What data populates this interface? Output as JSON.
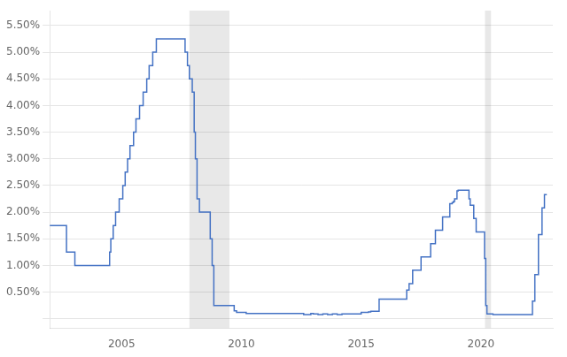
{
  "chart_data": {
    "type": "line",
    "line_style": "steps",
    "color": "#4472c4",
    "x": [
      2002.0,
      2002.05,
      2002.08,
      2002.1,
      2002.15,
      2002.2,
      2002.25,
      2002.3,
      2002.35,
      2002.4,
      2002.45,
      2002.5,
      2002.55,
      2002.6,
      2002.65,
      2002.7,
      2002.75,
      2002.8,
      2002.85,
      2002.9,
      2002.95,
      2003.0,
      2003.05,
      2003.1,
      2003.15,
      2003.2,
      2003.25,
      2003.3,
      2003.4,
      2003.5,
      2003.6,
      2003.7,
      2003.8,
      2003.9,
      2004.0,
      2004.1,
      2004.2,
      2004.3,
      2004.4,
      2004.5,
      2004.55,
      2004.6,
      2004.65,
      2004.7,
      2004.75,
      2004.8,
      2004.85,
      2004.9,
      2004.95,
      2005.0,
      2005.05,
      2005.1,
      2005.15,
      2005.2,
      2005.25,
      2005.3,
      2005.35,
      2005.4,
      2005.45,
      2005.5,
      2005.55,
      2005.6,
      2005.65,
      2005.7,
      2005.75,
      2005.8,
      2005.85,
      2005.9,
      2005.95,
      2006.0,
      2006.05,
      2006.1,
      2006.15,
      2006.2,
      2006.25,
      2006.3,
      2006.35,
      2006.4,
      2006.45,
      2006.5,
      2006.55,
      2006.6,
      2006.65,
      2006.7,
      2006.75,
      2006.8,
      2006.85,
      2006.9,
      2006.95,
      2007.0,
      2007.05,
      2007.1,
      2007.15,
      2007.2,
      2007.25,
      2007.3,
      2007.35,
      2007.4,
      2007.45,
      2007.5,
      2007.55,
      2007.6,
      2007.65,
      2007.7,
      2007.75,
      2007.78,
      2007.83,
      2007.87,
      2007.9,
      2007.95,
      2008.0,
      2008.03,
      2008.05,
      2008.08,
      2008.1,
      2008.15,
      2008.2,
      2008.25,
      2008.3,
      2008.35,
      2008.4,
      2008.45,
      2008.5,
      2008.55,
      2008.6,
      2008.65,
      2008.7,
      2008.75,
      2008.78,
      2008.82,
      2008.85,
      2008.9,
      2008.92,
      2008.95,
      2009.0,
      2009.1,
      2009.2,
      2009.3,
      2009.4,
      2009.5,
      2009.6,
      2009.7,
      2009.75,
      2009.8,
      2009.85,
      2009.9,
      2009.95,
      2010.0,
      2010.1,
      2010.15,
      2010.2,
      2010.25,
      2010.3,
      2010.4,
      2010.5,
      2010.6,
      2010.7,
      2010.8,
      2010.9,
      2011.0,
      2011.1,
      2011.2,
      2011.3,
      2011.4,
      2011.5,
      2011.6,
      2011.7,
      2011.8,
      2011.9,
      2012.0,
      2012.1,
      2012.2,
      2012.3,
      2012.4,
      2012.5,
      2012.6,
      2012.7,
      2012.8,
      2012.9,
      2013.0,
      2013.1,
      2013.2,
      2013.3,
      2013.4,
      2013.5,
      2013.6,
      2013.7,
      2013.8,
      2013.9,
      2014.0,
      2014.1,
      2014.2,
      2014.3,
      2014.4,
      2014.5,
      2014.6,
      2014.7,
      2014.8,
      2014.9,
      2015.0,
      2015.1,
      2015.2,
      2015.3,
      2015.4,
      2015.5,
      2015.6,
      2015.7,
      2015.75,
      2015.8,
      2015.85,
      2015.9,
      2015.95,
      2016.0,
      2016.1,
      2016.2,
      2016.3,
      2016.4,
      2016.5,
      2016.6,
      2016.7,
      2016.8,
      2016.9,
      2016.95,
      2017.0,
      2017.05,
      2017.1,
      2017.15,
      2017.2,
      2017.3,
      2017.4,
      2017.5,
      2017.6,
      2017.7,
      2017.8,
      2017.9,
      2017.95,
      2018.0,
      2018.05,
      2018.1,
      2018.15,
      2018.2,
      2018.3,
      2018.4,
      2018.5,
      2018.6,
      2018.7,
      2018.75,
      2018.8,
      2018.85,
      2018.9,
      2018.95,
      2019.0,
      2019.05,
      2019.1,
      2019.2,
      2019.3,
      2019.4,
      2019.5,
      2019.55,
      2019.6,
      2019.7,
      2019.75,
      2019.8,
      2019.85,
      2019.9,
      2019.95,
      2020.0,
      2020.05,
      2020.1,
      2020.15,
      2020.18,
      2020.2,
      2020.25,
      2020.3,
      2020.4,
      2020.5,
      2020.6,
      2020.7,
      2020.8,
      2020.9,
      2021.0,
      2021.1,
      2021.2,
      2021.3,
      2021.4,
      2021.5,
      2021.6,
      2021.7,
      2021.8,
      2021.9,
      2022.0,
      2022.1,
      2022.15,
      2022.2,
      2022.25,
      2022.3,
      2022.4,
      2022.5,
      2022.55,
      2022.6,
      2022.65,
      2022.7,
      2022.75
    ],
    "values": [
      1.75,
      1.75,
      1.75,
      1.75,
      1.75,
      1.75,
      1.75,
      1.75,
      1.75,
      1.75,
      1.75,
      1.75,
      1.75,
      1.75,
      1.75,
      1.25,
      1.25,
      1.25,
      1.25,
      1.25,
      1.25,
      1.25,
      1.0,
      1.0,
      1.0,
      1.0,
      1.0,
      1.0,
      1.0,
      1.0,
      1.0,
      1.0,
      1.0,
      1.0,
      1.0,
      1.0,
      1.0,
      1.0,
      1.0,
      1.25,
      1.5,
      1.5,
      1.75,
      1.75,
      2.0,
      2.0,
      2.0,
      2.25,
      2.25,
      2.25,
      2.5,
      2.5,
      2.75,
      2.75,
      3.0,
      3.0,
      3.25,
      3.25,
      3.25,
      3.5,
      3.5,
      3.75,
      3.75,
      3.75,
      4.0,
      4.0,
      4.0,
      4.25,
      4.25,
      4.25,
      4.5,
      4.5,
      4.75,
      4.75,
      4.75,
      5.0,
      5.0,
      5.0,
      5.25,
      5.25,
      5.25,
      5.25,
      5.25,
      5.25,
      5.25,
      5.25,
      5.25,
      5.25,
      5.25,
      5.25,
      5.25,
      5.25,
      5.25,
      5.25,
      5.25,
      5.25,
      5.25,
      5.25,
      5.25,
      5.25,
      5.25,
      5.25,
      5.0,
      5.0,
      4.75,
      4.75,
      4.5,
      4.5,
      4.5,
      4.25,
      4.25,
      3.5,
      3.5,
      3.0,
      3.0,
      2.25,
      2.25,
      2.0,
      2.0,
      2.0,
      2.0,
      2.0,
      2.0,
      2.0,
      2.0,
      2.0,
      1.5,
      1.5,
      1.0,
      1.0,
      0.25,
      0.25,
      0.25,
      0.25,
      0.25,
      0.25,
      0.25,
      0.25,
      0.25,
      0.25,
      0.25,
      0.15,
      0.15,
      0.12,
      0.12,
      0.12,
      0.12,
      0.12,
      0.12,
      0.12,
      0.1,
      0.1,
      0.1,
      0.1,
      0.1,
      0.1,
      0.1,
      0.1,
      0.1,
      0.1,
      0.1,
      0.1,
      0.1,
      0.1,
      0.1,
      0.1,
      0.1,
      0.1,
      0.1,
      0.1,
      0.1,
      0.1,
      0.1,
      0.1,
      0.1,
      0.08,
      0.08,
      0.08,
      0.1,
      0.09,
      0.09,
      0.08,
      0.08,
      0.09,
      0.09,
      0.08,
      0.08,
      0.09,
      0.09,
      0.08,
      0.08,
      0.09,
      0.09,
      0.09,
      0.09,
      0.09,
      0.09,
      0.09,
      0.09,
      0.12,
      0.12,
      0.12,
      0.13,
      0.14,
      0.14,
      0.14,
      0.14,
      0.37,
      0.37,
      0.37,
      0.37,
      0.37,
      0.37,
      0.37,
      0.37,
      0.37,
      0.37,
      0.37,
      0.37,
      0.37,
      0.37,
      0.54,
      0.54,
      0.66,
      0.66,
      0.66,
      0.91,
      0.91,
      0.91,
      0.91,
      1.16,
      1.16,
      1.16,
      1.16,
      1.41,
      1.41,
      1.41,
      1.41,
      1.66,
      1.66,
      1.66,
      1.66,
      1.91,
      1.91,
      1.91,
      2.16,
      2.16,
      2.18,
      2.2,
      2.25,
      2.25,
      2.4,
      2.41,
      2.41,
      2.41,
      2.41,
      2.41,
      2.25,
      2.13,
      2.13,
      1.88,
      1.88,
      1.63,
      1.63,
      1.63,
      1.63,
      1.63,
      1.63,
      1.63,
      1.13,
      1.13,
      0.25,
      0.09,
      0.09,
      0.09,
      0.08,
      0.08,
      0.08,
      0.08,
      0.08,
      0.08,
      0.08,
      0.08,
      0.08,
      0.08,
      0.08,
      0.08,
      0.08,
      0.08,
      0.08,
      0.08,
      0.08,
      0.33,
      0.33,
      0.83,
      0.83,
      1.58,
      1.58,
      2.08,
      2.08,
      2.33,
      2.33,
      2.33
    ],
    "bands": [
      [
        2007.83,
        2009.5
      ],
      [
        2020.17,
        2020.42
      ]
    ],
    "xlim": [
      2002.0,
      2023.0
    ],
    "xticks": [
      2005,
      2010,
      2015,
      2020
    ],
    "ylim": [
      -0.18,
      5.78
    ],
    "yticks": [
      {
        "value": 0.0,
        "label": ""
      },
      {
        "value": 0.5,
        "label": "0.50%"
      },
      {
        "value": 1.0,
        "label": "1.00%"
      },
      {
        "value": 1.5,
        "label": "1.50%"
      },
      {
        "value": 2.0,
        "label": "2.00%"
      },
      {
        "value": 2.5,
        "label": "2.50%"
      },
      {
        "value": 3.0,
        "label": "3.00%"
      },
      {
        "value": 3.5,
        "label": "3.50%"
      },
      {
        "value": 4.0,
        "label": "4.00%"
      },
      {
        "value": 4.5,
        "label": "4.50%"
      },
      {
        "value": 5.0,
        "label": "5.00%"
      },
      {
        "value": 5.5,
        "label": "5.50%"
      }
    ],
    "grid": "y"
  }
}
